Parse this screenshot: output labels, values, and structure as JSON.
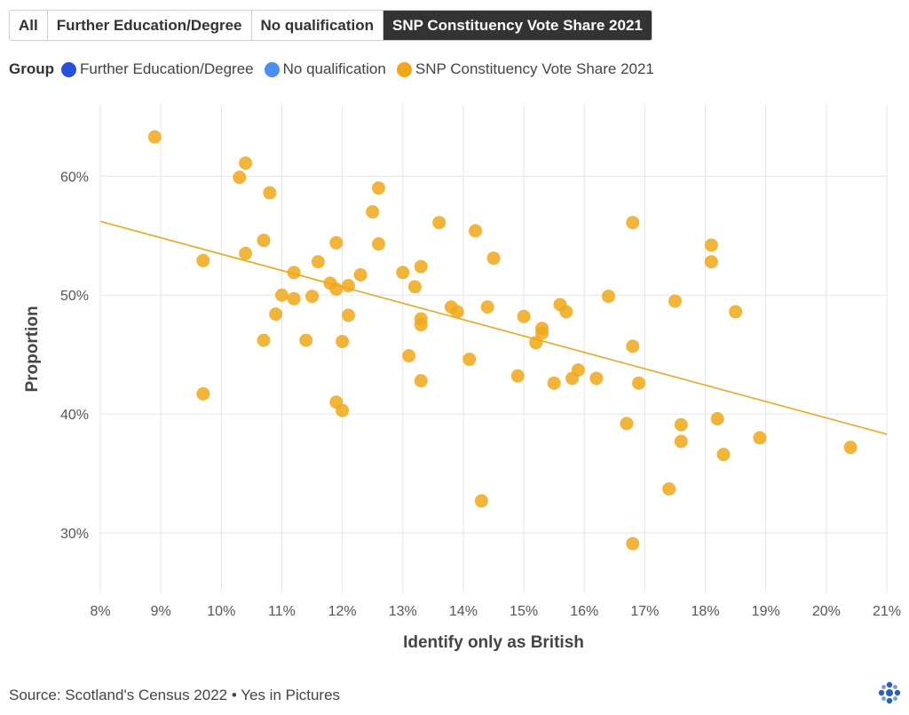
{
  "tabs": [
    {
      "label": "All",
      "active": false
    },
    {
      "label": "Further Education/Degree",
      "active": false
    },
    {
      "label": "No qualification",
      "active": false
    },
    {
      "label": "SNP Constituency Vote Share 2021",
      "active": true
    }
  ],
  "legend": {
    "title": "Group",
    "items": [
      {
        "label": "Further Education/Degree",
        "color": "#2850d8"
      },
      {
        "label": "No qualification",
        "color": "#4a8ff0"
      },
      {
        "label": "SNP Constituency Vote Share 2021",
        "color": "#f0a818"
      }
    ]
  },
  "source": "Source: Scotland's Census 2022 • Yes in Pictures",
  "logo_icon": "yes-in-pictures-logo",
  "chart_data": {
    "type": "scatter",
    "xlabel": "Identify only as British",
    "ylabel": "Proportion",
    "xlim": [
      8,
      21
    ],
    "ylim": [
      25,
      66
    ],
    "x_ticks": [
      8,
      9,
      10,
      11,
      12,
      13,
      14,
      15,
      16,
      17,
      18,
      19,
      20,
      21
    ],
    "x_tick_labels": [
      "8%",
      "9%",
      "10%",
      "11%",
      "12%",
      "13%",
      "14%",
      "15%",
      "16%",
      "17%",
      "18%",
      "19%",
      "20%",
      "21%"
    ],
    "y_ticks": [
      30,
      40,
      50,
      60
    ],
    "y_tick_labels": [
      "30%",
      "40%",
      "50%",
      "60%"
    ],
    "grid": true,
    "point_color": "#f0a818",
    "trend_color": "#e8a820",
    "trendline": {
      "x": [
        8,
        21
      ],
      "y": [
        56.2,
        38.3
      ]
    },
    "series": [
      {
        "name": "SNP Constituency Vote Share 2021",
        "points": [
          [
            8.9,
            63.3
          ],
          [
            9.7,
            52.9
          ],
          [
            9.7,
            41.7
          ],
          [
            10.3,
            59.9
          ],
          [
            10.4,
            61.1
          ],
          [
            10.4,
            53.5
          ],
          [
            10.7,
            54.6
          ],
          [
            10.7,
            46.2
          ],
          [
            10.8,
            58.6
          ],
          [
            10.9,
            48.4
          ],
          [
            11.0,
            50.0
          ],
          [
            11.2,
            51.9
          ],
          [
            11.2,
            49.7
          ],
          [
            11.4,
            46.2
          ],
          [
            11.5,
            49.9
          ],
          [
            11.6,
            52.8
          ],
          [
            11.8,
            51.0
          ],
          [
            11.9,
            54.4
          ],
          [
            11.9,
            50.5
          ],
          [
            11.9,
            41.0
          ],
          [
            12.0,
            46.1
          ],
          [
            12.0,
            40.3
          ],
          [
            12.1,
            50.8
          ],
          [
            12.1,
            48.3
          ],
          [
            12.3,
            51.7
          ],
          [
            12.5,
            57.0
          ],
          [
            12.6,
            59.0
          ],
          [
            12.6,
            54.3
          ],
          [
            13.0,
            51.9
          ],
          [
            13.1,
            44.9
          ],
          [
            13.2,
            50.7
          ],
          [
            13.3,
            52.4
          ],
          [
            13.3,
            48.0
          ],
          [
            13.3,
            47.5
          ],
          [
            13.3,
            42.8
          ],
          [
            13.6,
            56.1
          ],
          [
            13.8,
            49.0
          ],
          [
            13.9,
            48.6
          ],
          [
            14.1,
            44.6
          ],
          [
            14.2,
            55.4
          ],
          [
            14.3,
            32.7
          ],
          [
            14.4,
            49.0
          ],
          [
            14.5,
            53.1
          ],
          [
            14.9,
            43.2
          ],
          [
            15.0,
            48.2
          ],
          [
            15.2,
            46.0
          ],
          [
            15.3,
            47.2
          ],
          [
            15.3,
            46.8
          ],
          [
            15.5,
            42.6
          ],
          [
            15.6,
            49.2
          ],
          [
            15.7,
            48.6
          ],
          [
            15.8,
            43.0
          ],
          [
            15.9,
            43.7
          ],
          [
            16.2,
            43.0
          ],
          [
            16.4,
            49.9
          ],
          [
            16.7,
            39.2
          ],
          [
            16.8,
            56.1
          ],
          [
            16.8,
            45.7
          ],
          [
            16.8,
            29.1
          ],
          [
            16.9,
            42.6
          ],
          [
            17.4,
            33.7
          ],
          [
            17.5,
            49.5
          ],
          [
            17.6,
            39.1
          ],
          [
            17.6,
            37.7
          ],
          [
            18.1,
            54.2
          ],
          [
            18.1,
            52.8
          ],
          [
            18.2,
            39.6
          ],
          [
            18.3,
            36.6
          ],
          [
            18.5,
            48.6
          ],
          [
            18.9,
            38.0
          ],
          [
            20.4,
            37.2
          ]
        ]
      }
    ]
  }
}
